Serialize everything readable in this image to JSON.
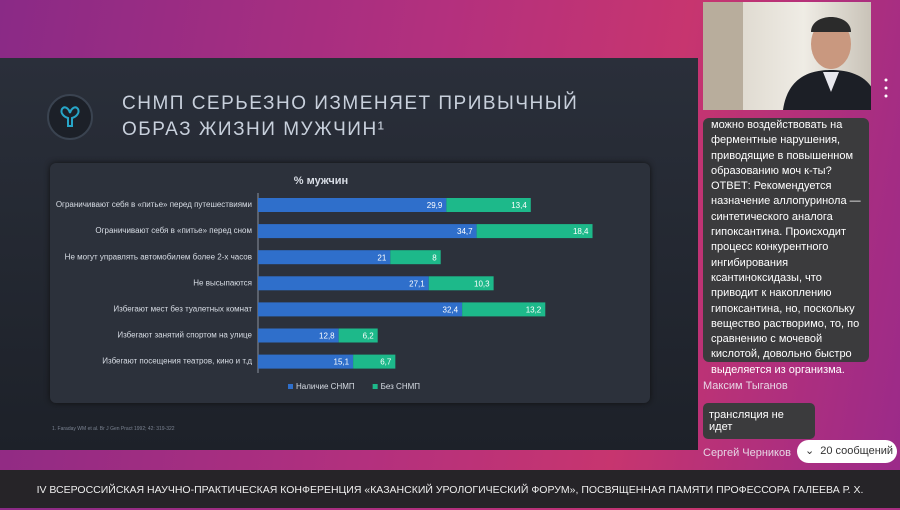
{
  "slide_title": [
    "СНМП СЕРЬЕЗНО ИЗМЕНЯЕТ ПРИВЫЧНЫЙ",
    "ОБРАЗ ЖИЗНИ МУЖЧИН¹"
  ],
  "chart_data": {
    "type": "stacked-bar-horizontal",
    "title": "% мужчин",
    "categories": [
      "Ограничивают себя в «питье» перед путешествиями",
      "Ограничивают себя в «питье» перед сном",
      "Не могут управлять автомобилем более 2-х часов",
      "Не высыпаются",
      "Избегают мест без туалетных комнат",
      "Избегают занятий спортом на улице",
      "Избегают посещения театров, кино и т.д"
    ],
    "series": [
      {
        "name": "Наличие СНМП",
        "color": "#2f6fcb",
        "values": [
          29.9,
          34.7,
          21,
          27.1,
          32.4,
          12.8,
          15.1
        ],
        "value_labels": [
          "29,9",
          "34,7",
          "21",
          "27,1",
          "32,4",
          "12,8",
          "15,1"
        ]
      },
      {
        "name": "Без СНМП",
        "color": "#1db98a",
        "values": [
          13.4,
          18.4,
          8,
          10.3,
          13.2,
          6.2,
          6.7
        ],
        "value_labels": [
          "13,4",
          "18,4",
          "8",
          "10,3",
          "13,2",
          "6,2",
          "6,7"
        ]
      }
    ],
    "legend": "bottom"
  },
  "footnote": "1. Faraday WM et al. Br J Gen Pract 1992; 42: 319-322",
  "chat": {
    "messages": [
      {
        "lines": [
          "можно воздействовать на",
          "ферментные нарушения,",
          "приводящие в повышенном",
          "образованию моч к-ты?",
          "ОТВЕТ: Рекомендуется",
          "назначение аллопуринола —",
          "синтетического аналога",
          "гипоксантина. Происходит",
          "процесс конкурентного",
          "ингибирования",
          "ксантиноксидазы, что",
          "приводит к накоплению",
          "гипоксантина, но, поскольку",
          "вещество растворимо, то, по",
          "сравнению с мочевой",
          "кислотой, довольно быстро",
          "выделяется из организма."
        ]
      },
      {
        "author": "Максим Тыганов",
        "text": "трансляция не идет"
      },
      {
        "author": "Сергей Черников"
      }
    ],
    "new_messages_button": "20 сообщений"
  },
  "footer": "IV ВСЕРОССИЙСКАЯ НАУЧНО-ПРАКТИЧЕСКАЯ КОНФЕРЕНЦИЯ «КАЗАНСКИЙ УРОЛОГИЧЕСКИЙ ФОРУМ», ПОСВЯЩЕННАЯ ПАМЯТИ ПРОФЕССОРА ГАЛЕЕВА Р. Х."
}
